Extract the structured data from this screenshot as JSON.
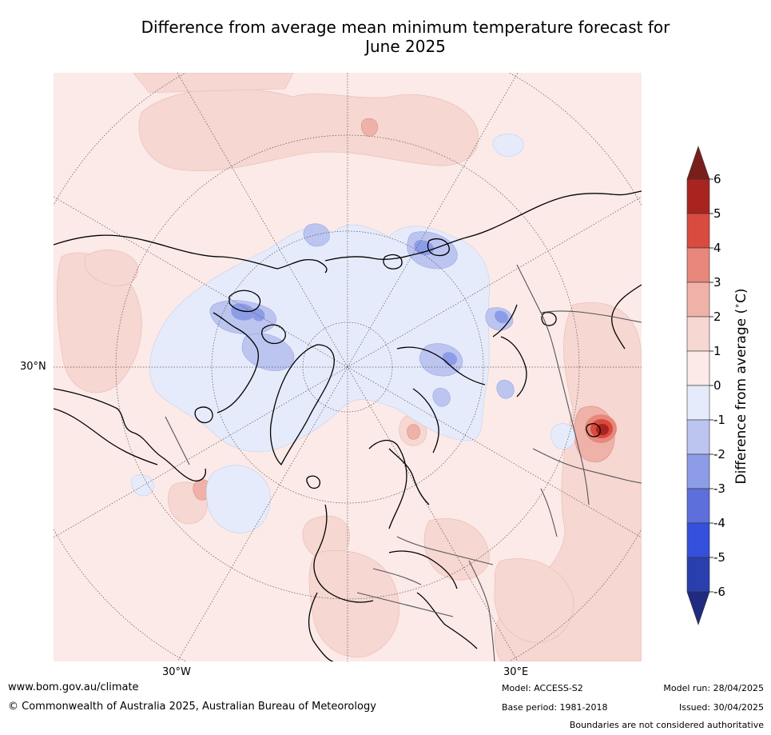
{
  "title": {
    "line1": "Difference from average mean minimum temperature forecast for",
    "line2": "June 2025"
  },
  "map": {
    "projection": "north polar stereographic",
    "lat_label": "30°N",
    "lon_labels": [
      "30°W",
      "30°E"
    ]
  },
  "colorbar": {
    "title": "Difference from average (°C)",
    "title_main": "Difference from average (",
    "title_deg": "∘",
    "title_unit": "C)",
    "ticks": [
      "6",
      "5",
      "4",
      "3",
      "2",
      "1",
      "0",
      "-1",
      "-2",
      "-3",
      "-4",
      "-5",
      "-6"
    ],
    "colors": {
      "above_6": "#7a1e1b",
      "5_6": "#a9241f",
      "4_5": "#d94a3f",
      "3_4": "#e8877b",
      "2_3": "#efb2a8",
      "1_2": "#f6d7d2",
      "0_1": "#fbeae7",
      "m1_0": "#e6ebfb",
      "m2_m1": "#bcc5f0",
      "m3_m2": "#8d9ce6",
      "m4_m3": "#5c6fdb",
      "m5_m4": "#3550dc",
      "m6_m5": "#2a3fae",
      "below_m6": "#1f2a80"
    }
  },
  "footer": {
    "url": "www.bom.gov.au/climate",
    "copyright": "© Commonwealth of Australia 2025, Australian Bureau of Meteorology",
    "model": "Model: ACCESS-S2",
    "base_period": "Base period: 1981-2018",
    "model_run": "Model run: 28/04/2025",
    "issued": "Issued: 30/04/2025",
    "disclaimer": "Boundaries are not considered authoritative"
  }
}
